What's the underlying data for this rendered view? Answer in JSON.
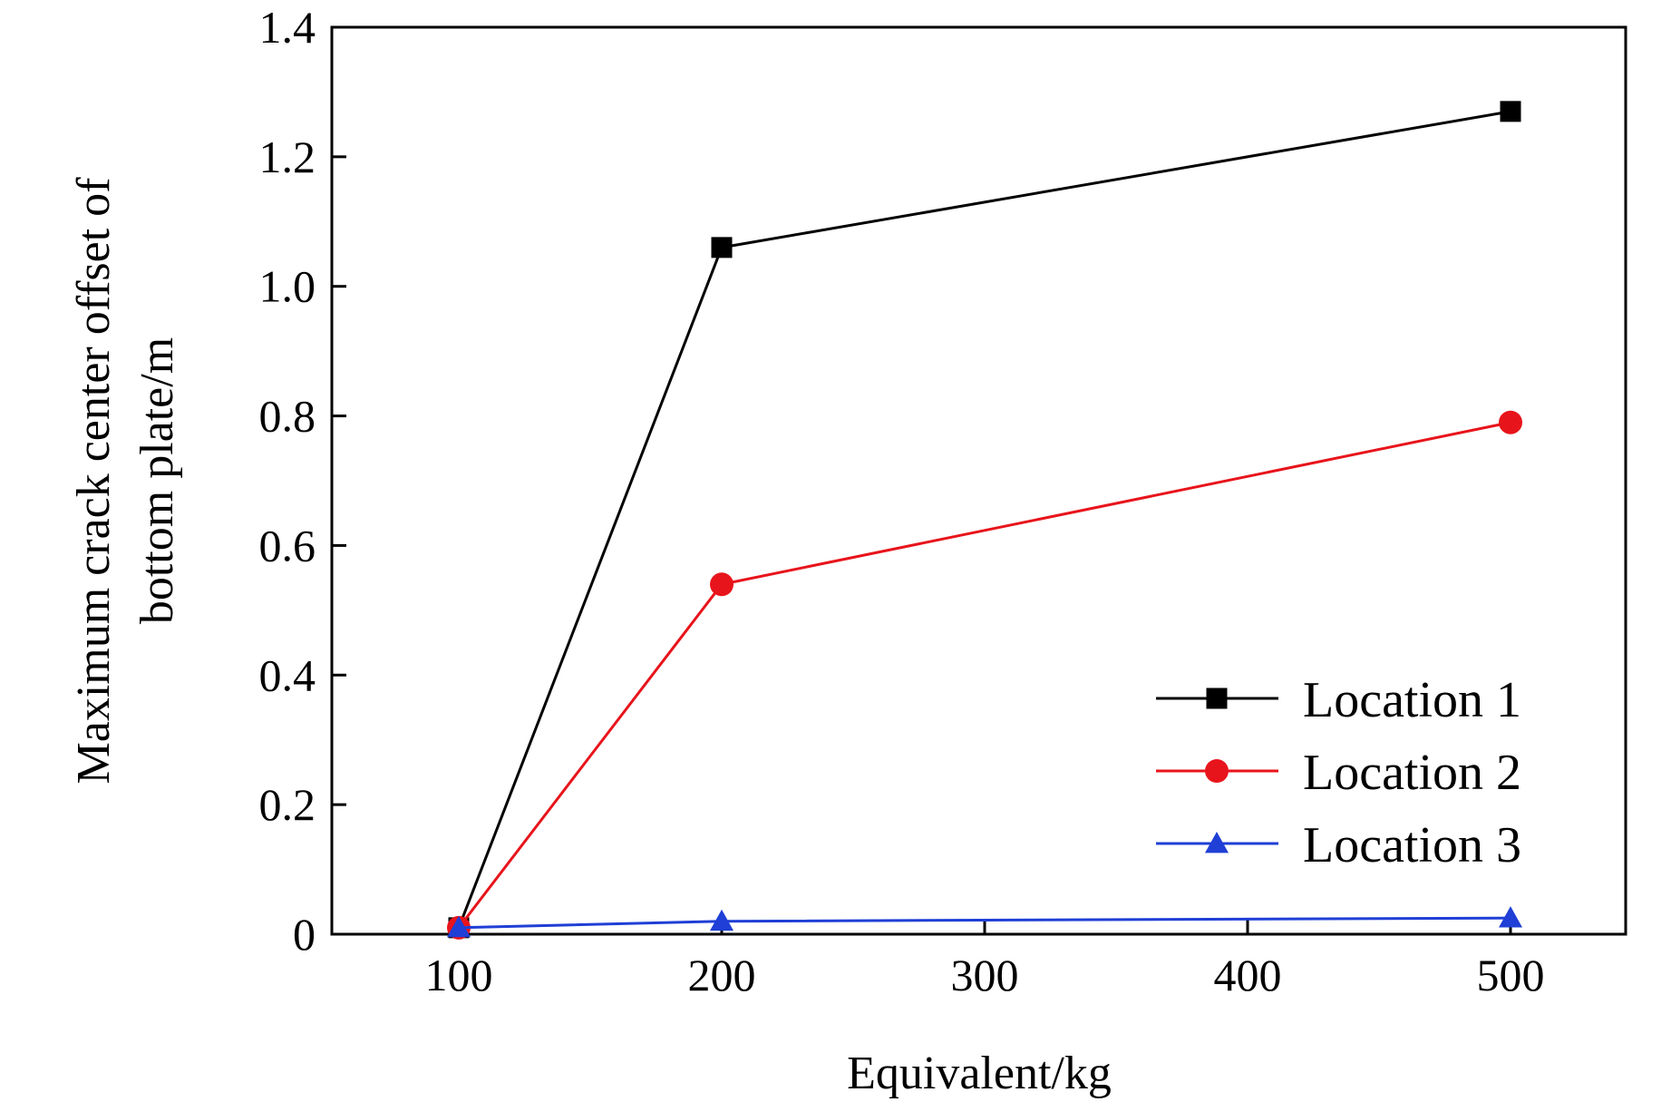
{
  "chart_data": {
    "type": "line",
    "x": [
      "100",
      "200",
      "300",
      "400",
      "500"
    ],
    "xlabel": "Equivalent/kg",
    "ylabel": [
      "Maximum crack center offset of",
      "bottom plate/m"
    ],
    "ylim": [
      0,
      1.4
    ],
    "yticks": [
      "0",
      "0.2",
      "0.4",
      "0.6",
      "0.8",
      "1.0",
      "1.2",
      "1.4"
    ],
    "legend_position": "bottom-right",
    "grid": false,
    "series": [
      {
        "name": "Location 1",
        "color": "#000000",
        "marker": "square",
        "points": [
          {
            "x": "100",
            "y": 0.01
          },
          {
            "x": "200",
            "y": 1.06
          },
          {
            "x": "500",
            "y": 1.27
          }
        ]
      },
      {
        "name": "Location 2",
        "color": "#e8141b",
        "marker": "circle",
        "points": [
          {
            "x": "100",
            "y": 0.01
          },
          {
            "x": "200",
            "y": 0.54
          },
          {
            "x": "500",
            "y": 0.79
          }
        ]
      },
      {
        "name": "Location 3",
        "color": "#1f3fd6",
        "marker": "triangle",
        "points": [
          {
            "x": "100",
            "y": 0.01
          },
          {
            "x": "200",
            "y": 0.02
          },
          {
            "x": "500",
            "y": 0.025
          }
        ]
      }
    ]
  }
}
